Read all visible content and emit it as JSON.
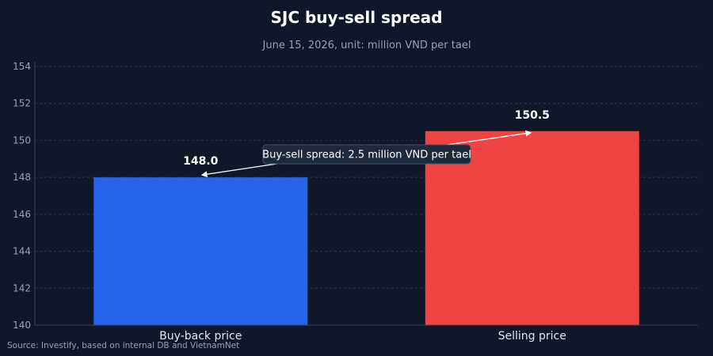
{
  "chart_data": {
    "type": "bar",
    "title": "SJC buy-sell spread",
    "subtitle": "June 15, 2026, unit: million VND per tael",
    "categories": [
      "Buy-back price",
      "Selling price"
    ],
    "values": [
      148.0,
      150.5
    ],
    "value_labels": [
      "148.0",
      "150.5"
    ],
    "colors": [
      "#2563eb",
      "#ef4444"
    ],
    "ylim": [
      140,
      154
    ],
    "yticks": [
      140,
      142,
      144,
      146,
      148,
      150,
      152,
      154
    ],
    "grid": true,
    "annotation": {
      "text": "Buy-sell spread: 2.5 million VND per tael"
    },
    "source": "Source: Investify, based on internal DB and VietnamNet"
  }
}
